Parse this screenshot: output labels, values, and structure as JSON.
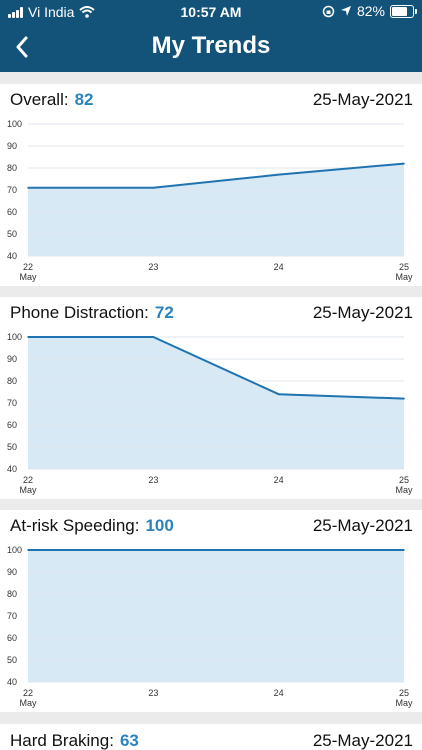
{
  "status_bar": {
    "carrier": "Vi India",
    "time": "10:57 AM",
    "battery": "82%",
    "battery_level": 0.82
  },
  "nav": {
    "title": "My Trends",
    "back_icon": "chevron-left-icon"
  },
  "colors": {
    "header_bg": "#135279",
    "value_text": "#2a83bd",
    "line": "#1f73b0",
    "area_fill": "#d8e9f6"
  },
  "cards": [
    {
      "label": "Overall:",
      "value": "82",
      "date": "25-May-2021"
    },
    {
      "label": "Phone Distraction:",
      "value": "72",
      "date": "25-May-2021"
    },
    {
      "label": "At-risk Speeding:",
      "value": "100",
      "date": "25-May-2021"
    },
    {
      "label": "Hard Braking:",
      "value": "63",
      "date": "25-May-2021"
    }
  ],
  "chart_data": [
    {
      "type": "area",
      "x": [
        "22 May",
        "23",
        "24",
        "25 May"
      ],
      "y_ticks": [
        40,
        50,
        60,
        70,
        80,
        90,
        100
      ],
      "ylim": [
        40,
        100
      ],
      "grid": true,
      "series": [
        {
          "values": [
            71,
            71,
            77,
            82
          ]
        }
      ]
    },
    {
      "type": "area",
      "x": [
        "22 May",
        "23",
        "24",
        "25 May"
      ],
      "y_ticks": [
        40,
        50,
        60,
        70,
        80,
        90,
        100
      ],
      "ylim": [
        40,
        100
      ],
      "grid": true,
      "series": [
        {
          "values": [
            100,
            100,
            74,
            72
          ]
        }
      ]
    },
    {
      "type": "area",
      "x": [
        "22 May",
        "23",
        "24",
        "25 May"
      ],
      "y_ticks": [
        40,
        50,
        60,
        70,
        80,
        90,
        100
      ],
      "ylim": [
        40,
        100
      ],
      "grid": true,
      "series": [
        {
          "values": [
            100,
            100,
            100,
            100
          ]
        }
      ]
    }
  ]
}
